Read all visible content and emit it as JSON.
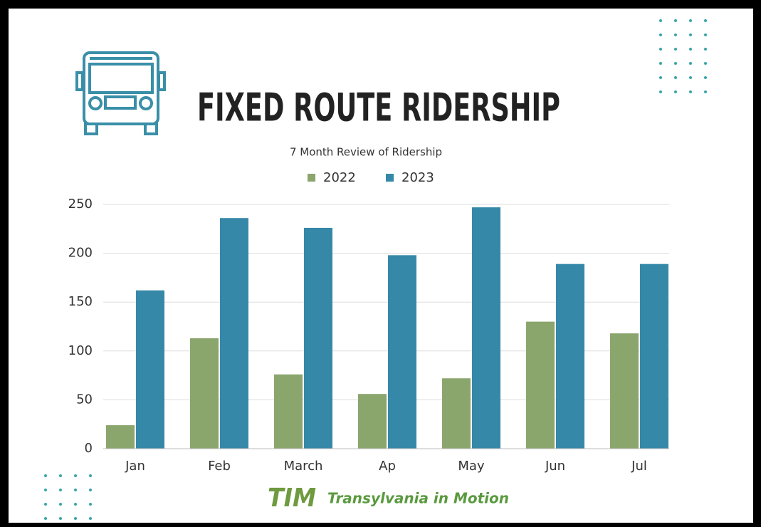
{
  "chart_data": {
    "type": "bar",
    "title": "FIXED ROUTE RIDERSHIP",
    "subtitle": "7 Month Review of Ridership",
    "categories": [
      "Jan",
      "Feb",
      "March",
      "Ap",
      "May",
      "Jun",
      "Jul"
    ],
    "series": [
      {
        "name": "2022",
        "color": "#8aa66d",
        "values": [
          24,
          113,
          76,
          56,
          72,
          130,
          118
        ]
      },
      {
        "name": "2023",
        "color": "#3588a8",
        "values": [
          162,
          236,
          226,
          198,
          247,
          189,
          189
        ]
      }
    ],
    "ylim": [
      0,
      250
    ],
    "yticks": [
      0,
      50,
      100,
      150,
      200,
      250
    ],
    "grid": true,
    "logo_mark": "TIM",
    "logo_text": "Transylvania in Motion"
  }
}
